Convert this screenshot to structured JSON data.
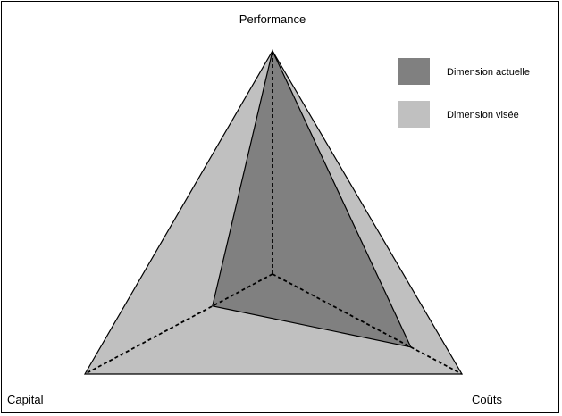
{
  "chart_data": {
    "type": "radar",
    "title": "",
    "axes": [
      "Performance",
      "Coûts",
      "Capital"
    ],
    "series": [
      {
        "name": "Dimension actuelle",
        "values": [
          1.0,
          0.73,
          0.32
        ],
        "color": "#808080"
      },
      {
        "name": "Dimension visée",
        "values": [
          1.0,
          1.0,
          1.0
        ],
        "color": "#c0c0c0"
      }
    ],
    "range": [
      0,
      1
    ],
    "grid": false,
    "legend": "top-right"
  }
}
